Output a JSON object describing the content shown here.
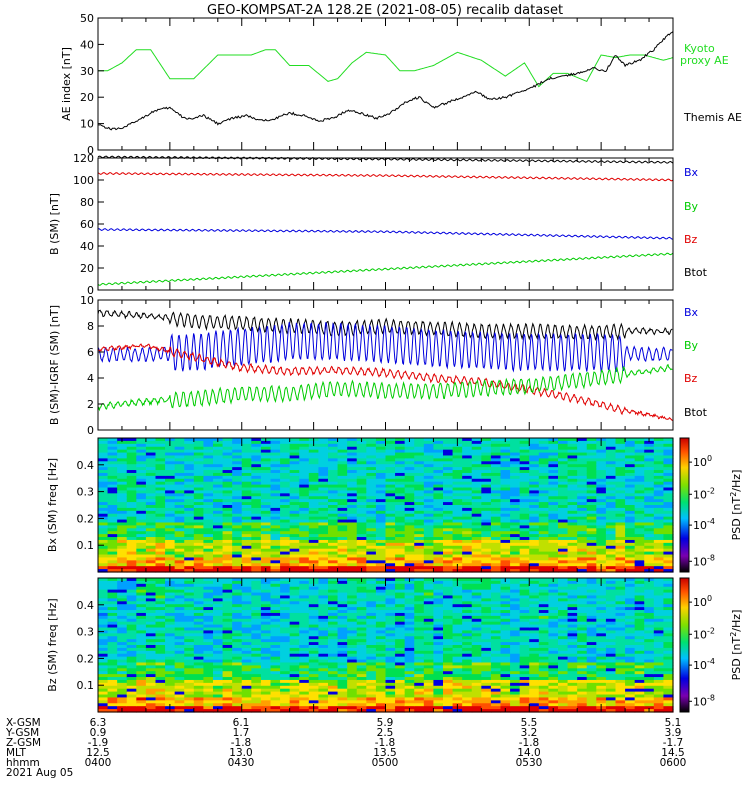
{
  "title": "GEO-KOMPSAT-2A 128.2E (2021-08-05) recalib dataset",
  "colors": {
    "black": "#000000",
    "red": "#e00000",
    "green": "#00cc00",
    "blue": "#0000dd",
    "kyoto": "#22dd22"
  },
  "time_axis": {
    "rows": [
      {
        "label": "X-GSM",
        "values": [
          "6.3",
          "6.1",
          "5.9",
          "5.5",
          "5.1"
        ]
      },
      {
        "label": "Y-GSM",
        "values": [
          "0.9",
          "1.7",
          "2.5",
          "3.2",
          "3.9"
        ]
      },
      {
        "label": "Z-GSM",
        "values": [
          "-1.9",
          "-1.8",
          "-1.8",
          "-1.8",
          "-1.7"
        ]
      },
      {
        "label": "MLT",
        "values": [
          "12.5",
          "13.0",
          "13.5",
          "14.0",
          "14.5"
        ]
      },
      {
        "label": "hhmm",
        "values": [
          "0400",
          "0430",
          "0500",
          "0530",
          "0600"
        ]
      }
    ],
    "date": "2021 Aug 05"
  },
  "chart_data": [
    {
      "type": "line",
      "ylabel": "AE index [nT]",
      "ylim": [
        0,
        50
      ],
      "yticks": [
        "0",
        "10",
        "20",
        "30",
        "40",
        "50"
      ],
      "series": [
        {
          "name": "Kyoto proxy AE",
          "color": "#22dd22",
          "x": [
            0,
            4,
            10,
            16,
            22,
            30,
            40,
            50,
            58,
            64,
            70,
            74,
            80,
            88,
            96,
            100,
            106,
            112,
            120,
            126,
            132,
            140,
            150,
            160,
            170,
            178,
            184,
            190,
            196,
            204,
            210,
            216,
            222,
            228,
            232,
            236,
            240
          ],
          "values": [
            30,
            30,
            33,
            38,
            38,
            27,
            27,
            36,
            36,
            36,
            38,
            38,
            32,
            32,
            26,
            27,
            33,
            37,
            36,
            30,
            30,
            32,
            37,
            34,
            28,
            33,
            24,
            29,
            29,
            26,
            36,
            35,
            36,
            36,
            35,
            34,
            35
          ]
        },
        {
          "name": "Themis AE",
          "color": "#000000",
          "x": [
            0,
            2,
            5,
            8,
            12,
            18,
            24,
            30,
            36,
            40,
            44,
            50,
            56,
            62,
            68,
            74,
            80,
            86,
            92,
            98,
            104,
            110,
            116,
            122,
            128,
            134,
            140,
            146,
            152,
            158,
            164,
            170,
            176,
            182,
            188,
            194,
            200,
            206,
            212,
            216,
            220,
            226,
            232,
            236,
            240
          ],
          "values": [
            10,
            9,
            8,
            8,
            9,
            12,
            15,
            16,
            12,
            12,
            13,
            10,
            12,
            13,
            11,
            12,
            14,
            13,
            11,
            12,
            15,
            14,
            12,
            14,
            18,
            20,
            16,
            18,
            20,
            22,
            19,
            20,
            22,
            24,
            27,
            28,
            29,
            31,
            30,
            36,
            32,
            34,
            38,
            42,
            45
          ]
        }
      ],
      "legend": [
        "Kyoto",
        "proxy AE",
        "Themis AE"
      ]
    },
    {
      "type": "line",
      "ylabel": "B (SM) [nT]",
      "ylim": [
        0,
        120
      ],
      "yticks": [
        "0",
        "20",
        "40",
        "60",
        "80",
        "100",
        "120"
      ],
      "series": [
        {
          "name": "Btot",
          "color": "#000000",
          "x": [
            0,
            120,
            240
          ],
          "values": [
            121,
            119,
            116
          ]
        },
        {
          "name": "Bx",
          "color": "#0000dd",
          "x": [
            0,
            120,
            240
          ],
          "values": [
            55,
            53,
            47
          ]
        },
        {
          "name": "Bz",
          "color": "#e00000",
          "x": [
            0,
            120,
            240
          ],
          "values": [
            106,
            104,
            100
          ]
        },
        {
          "name": "By",
          "color": "#00cc00",
          "x": [
            0,
            120,
            240
          ],
          "values": [
            5,
            19,
            33
          ]
        }
      ],
      "legend": [
        "Bx",
        "By",
        "Bz",
        "Btot"
      ]
    },
    {
      "type": "line",
      "ylabel": "B (SM)-IGRF (SM) [nT]",
      "ylim": [
        0,
        10
      ],
      "yticks": [
        "0",
        "2",
        "4",
        "6",
        "8",
        "10"
      ],
      "series": [
        {
          "name": "Btot",
          "color": "#000000",
          "x": [
            0,
            20,
            40,
            60,
            80,
            100,
            120,
            140,
            160,
            180,
            200,
            220,
            240
          ],
          "values": [
            9.0,
            8.8,
            8.4,
            8.2,
            8.0,
            7.8,
            8.0,
            7.8,
            7.6,
            7.6,
            7.5,
            7.6,
            7.6
          ]
        },
        {
          "name": "Bx",
          "color": "#0000dd",
          "x": [
            0,
            20,
            40,
            60,
            80,
            100,
            120,
            140,
            160,
            180,
            200,
            220,
            240
          ],
          "values": [
            5.8,
            5.8,
            6.0,
            6.4,
            6.8,
            6.8,
            6.6,
            6.3,
            6.1,
            6.0,
            6.0,
            5.9,
            5.8
          ]
        },
        {
          "name": "Bz",
          "color": "#e00000",
          "x": [
            0,
            20,
            40,
            60,
            80,
            100,
            120,
            140,
            160,
            180,
            200,
            220,
            240
          ],
          "values": [
            6.2,
            6.5,
            5.6,
            4.8,
            4.5,
            4.6,
            4.4,
            4.0,
            3.7,
            3.1,
            2.4,
            1.5,
            0.8
          ]
        },
        {
          "name": "By",
          "color": "#00cc00",
          "x": [
            0,
            20,
            40,
            60,
            80,
            100,
            120,
            140,
            160,
            180,
            200,
            220,
            240
          ],
          "values": [
            1.8,
            2.2,
            2.4,
            2.8,
            2.8,
            3.2,
            3.0,
            3.0,
            3.2,
            3.4,
            3.8,
            4.3,
            4.8
          ]
        }
      ],
      "legend": [
        "Bx",
        "By",
        "Bz",
        "Btot"
      ]
    },
    {
      "type": "heatmap",
      "ylabel": "Bx (SM) freq [Hz]",
      "ylim": [
        0,
        0.5
      ],
      "yticks": [
        "0.1",
        "0.2",
        "0.3",
        "0.4"
      ],
      "colorbar": {
        "label": "PSD [nT^2/Hz]",
        "ticks": [
          "10^0",
          "10^-2",
          "10^-4",
          "10^-8"
        ]
      }
    },
    {
      "type": "heatmap",
      "ylabel": "Bz (SM) freq [Hz]",
      "ylim": [
        0,
        0.5
      ],
      "yticks": [
        "0.1",
        "0.2",
        "0.3",
        "0.4"
      ],
      "colorbar": {
        "label": "PSD [nT^2/Hz]",
        "ticks": [
          "10^0",
          "10^-2",
          "10^-4",
          "10^-8"
        ]
      }
    }
  ]
}
